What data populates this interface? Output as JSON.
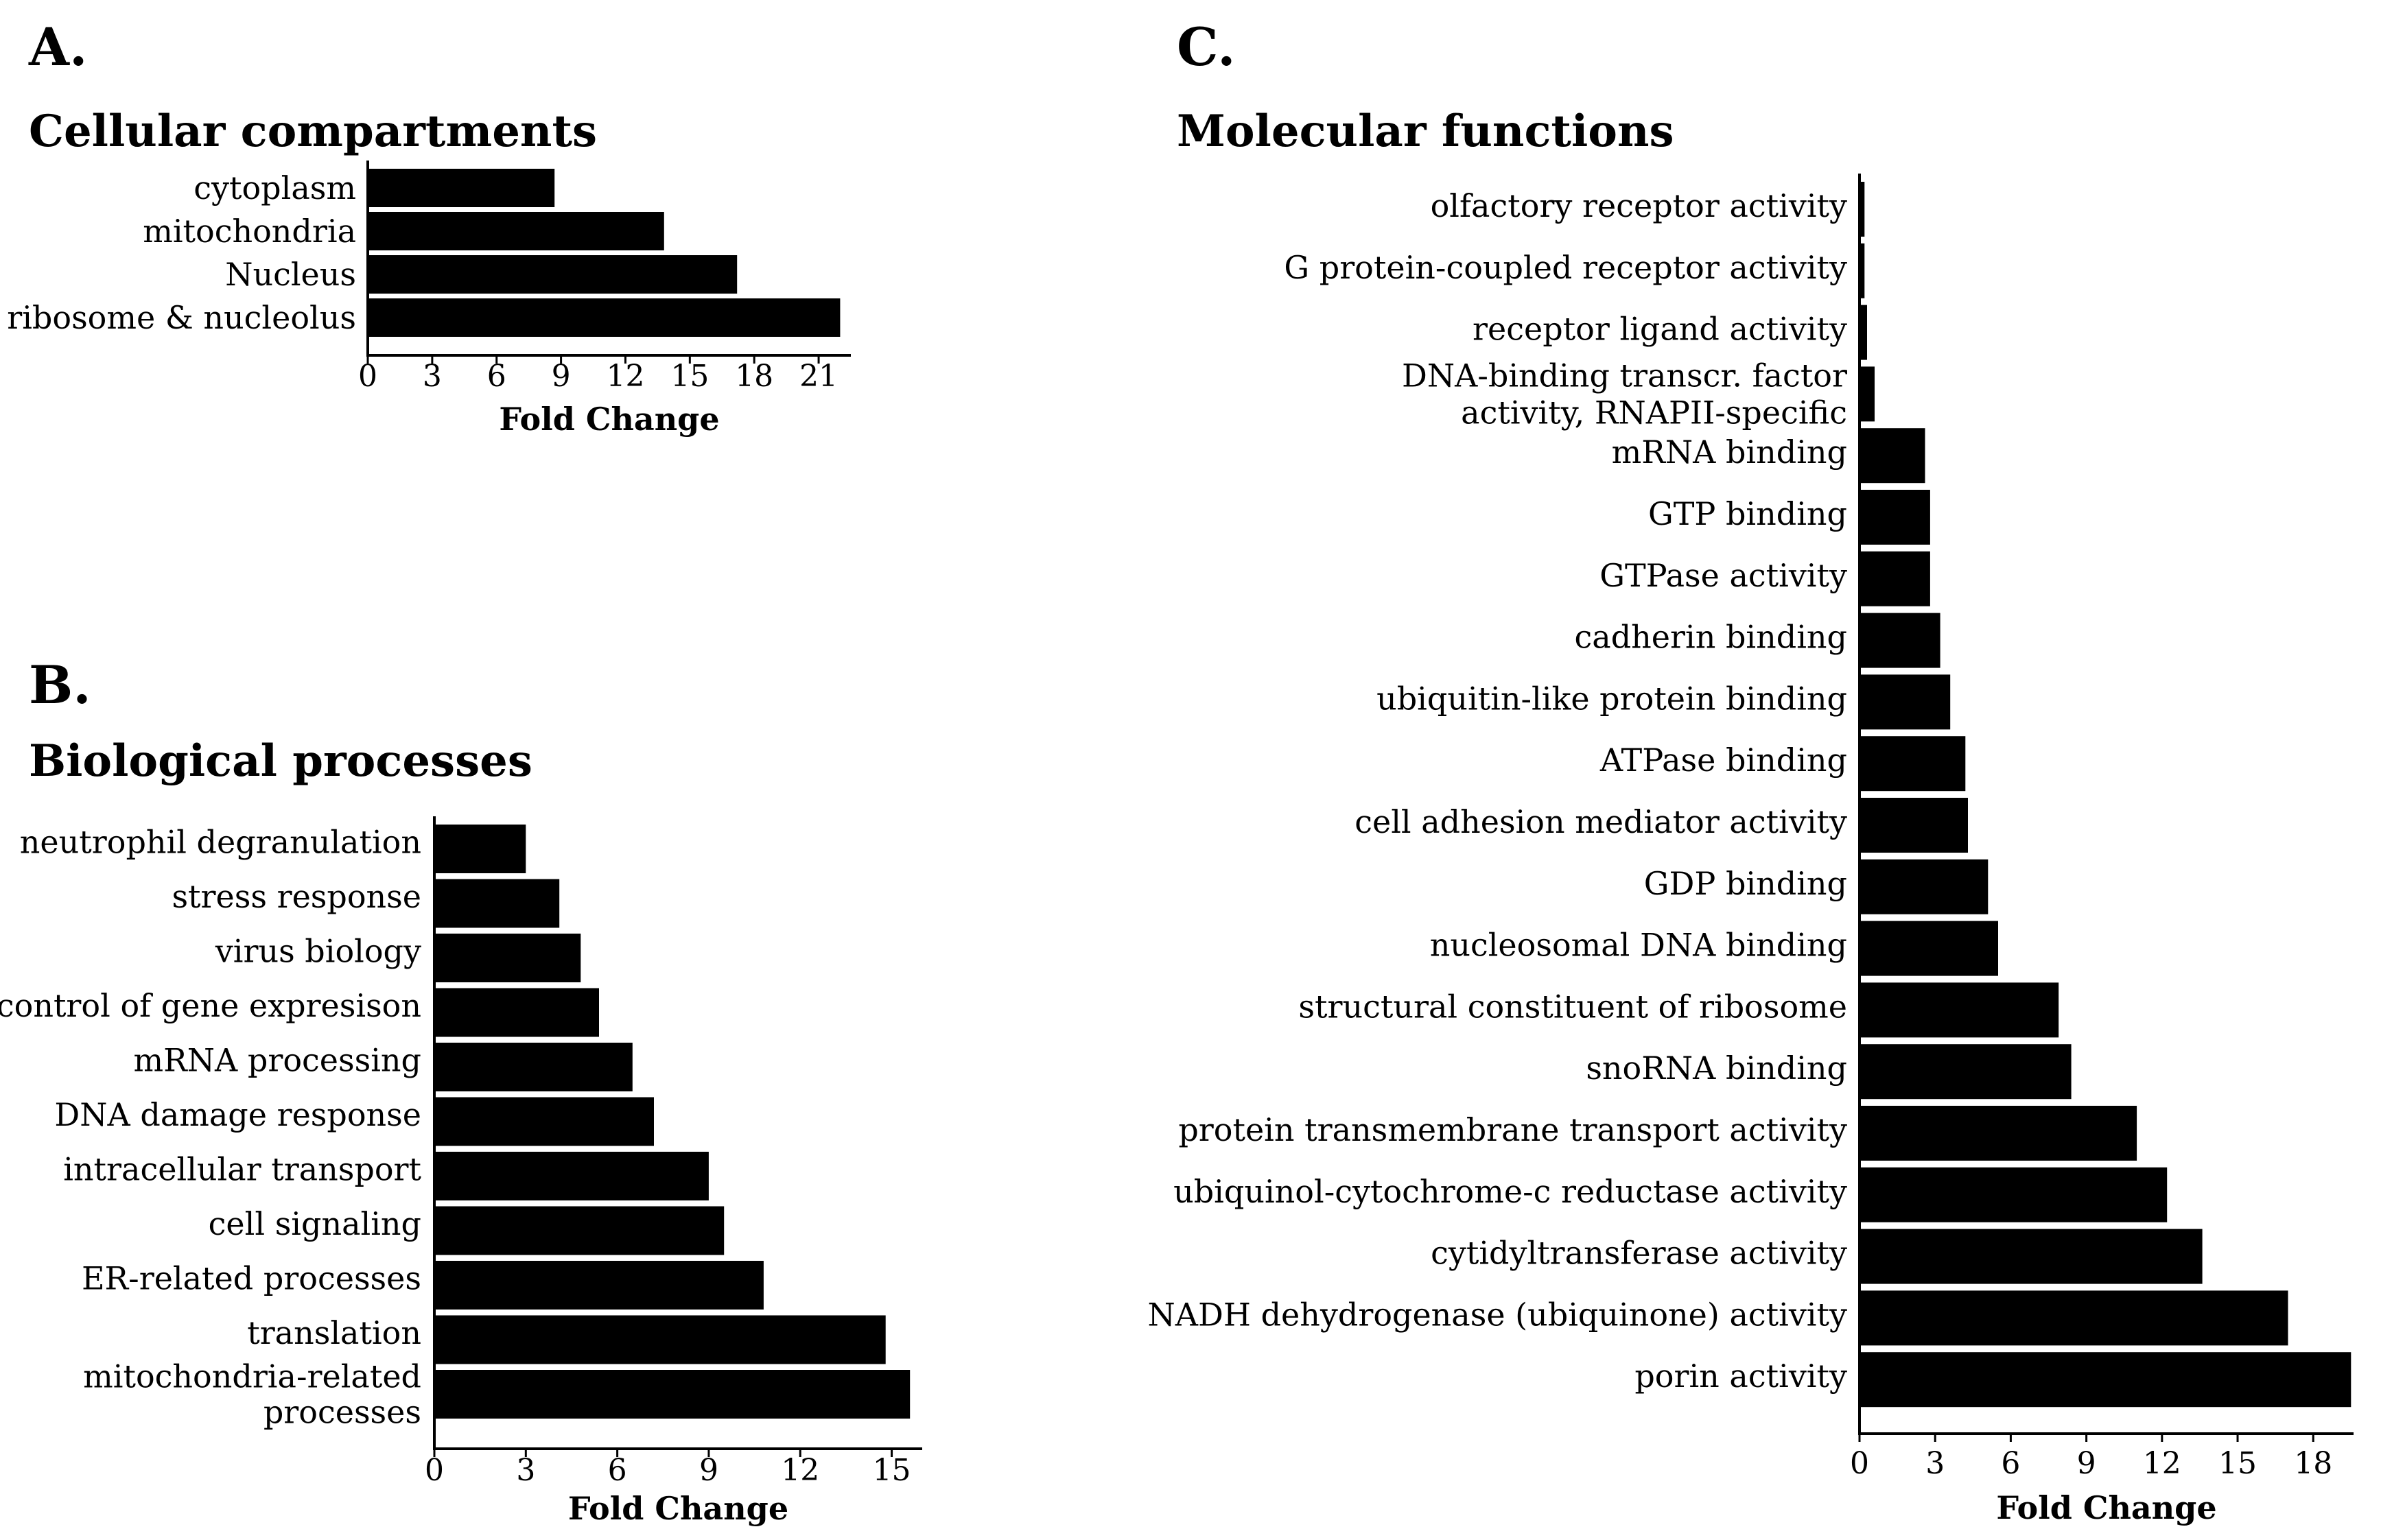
{
  "chart_data": [
    {
      "type": "bar",
      "orientation": "horizontal",
      "panel": "A.",
      "title": "Cellular compartments",
      "categories": [
        "cytoplasm",
        "mitochondria",
        "Nucleus",
        "ribosome & nucleolus"
      ],
      "values": [
        8.7,
        13.8,
        17.2,
        22.0
      ],
      "xlabel": "Fold Change",
      "ylabel": "",
      "xlim": [
        0,
        22.5
      ],
      "xticks": [
        0,
        3,
        6,
        9,
        12,
        15,
        18,
        21
      ]
    },
    {
      "type": "bar",
      "orientation": "horizontal",
      "panel": "B.",
      "title": "Biological processes",
      "categories": [
        "neutrophil degranulation",
        "stress response",
        "virus biology",
        "control of gene expresison",
        "mRNA processing",
        "DNA damage response",
        "intracellular transport",
        "cell signaling",
        "ER-related processes",
        "translation",
        "mitochondria-related processes"
      ],
      "values": [
        3.0,
        4.1,
        4.8,
        5.4,
        6.5,
        7.2,
        9.0,
        9.5,
        10.8,
        14.8,
        15.6
      ],
      "xlabel": "Fold Change",
      "ylabel": "",
      "xlim": [
        0,
        16
      ],
      "xticks": [
        0,
        3,
        6,
        9,
        12,
        15
      ]
    },
    {
      "type": "bar",
      "orientation": "horizontal",
      "panel": "C.",
      "title": "Molecular functions",
      "categories": [
        "olfactory receptor activity",
        "G protein-coupled receptor activity",
        "receptor ligand activity",
        "DNA-binding transcr. factor activity, RNAPII-specific",
        "mRNA binding",
        "GTP binding",
        "GTPase activity",
        "cadherin binding",
        "ubiquitin-like protein binding",
        "ATPase binding",
        "cell adhesion mediator activity",
        "GDP binding",
        "nucleosomal DNA binding",
        "structural constituent of ribosome",
        "snoRNA binding",
        "protein transmembrane transport activity",
        "ubiquinol-cytochrome-c reductase activity",
        "cytidyltransferase activity",
        "NADH dehydrogenase (ubiquinone) activity",
        "porin activity"
      ],
      "values": [
        0.2,
        0.2,
        0.3,
        0.6,
        2.6,
        2.8,
        2.8,
        3.2,
        3.6,
        4.2,
        4.3,
        5.1,
        5.5,
        7.9,
        8.4,
        11.0,
        12.2,
        13.6,
        17.0,
        19.5
      ],
      "xlabel": "Fold Change",
      "ylabel": "",
      "xlim": [
        0,
        19.6
      ],
      "xticks": [
        0,
        3,
        6,
        9,
        12,
        15,
        18
      ]
    }
  ]
}
